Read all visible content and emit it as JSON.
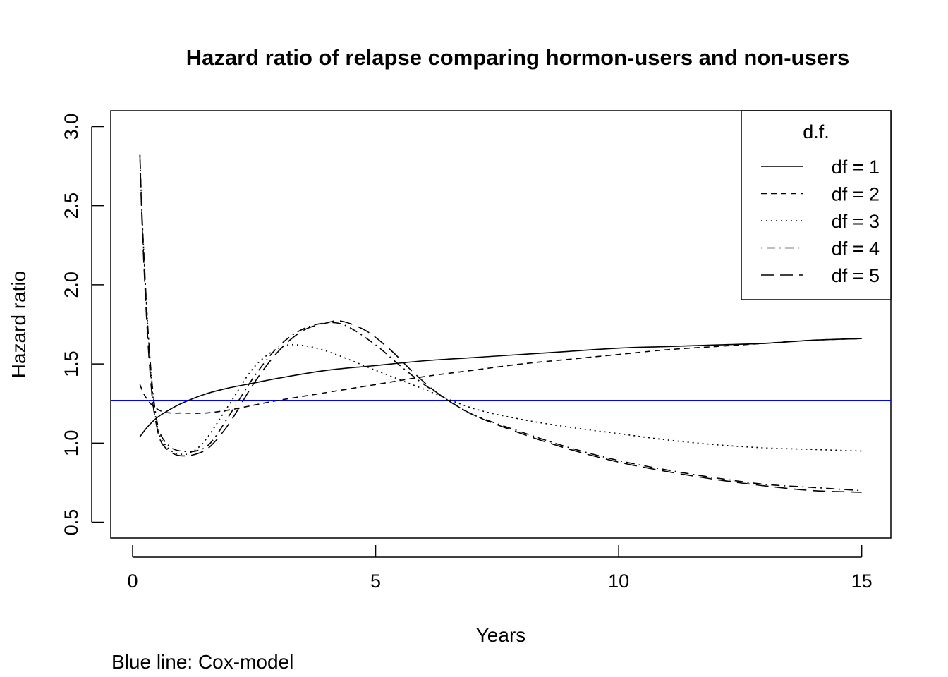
{
  "chart_data": {
    "type": "line",
    "title": "Hazard ratio of relapse comparing hormon-users and non-users",
    "xlabel": "Years",
    "ylabel": "Hazard ratio",
    "subtitle": "Blue line: Cox-model",
    "xlim": [
      -0.45,
      15.6
    ],
    "ylim": [
      0.4,
      3.1
    ],
    "xticks": [
      0,
      5,
      10,
      15
    ],
    "yticks": [
      0.5,
      1.0,
      1.5,
      2.0,
      2.5,
      3.0
    ],
    "xtick_labels": [
      "0",
      "5",
      "10",
      "15"
    ],
    "ytick_labels": [
      "0.5",
      "1.0",
      "1.5",
      "2.0",
      "2.5",
      "3.0"
    ],
    "grid": false,
    "legend": {
      "title": "d.f.",
      "position": "top-right",
      "labels": [
        "df = 1",
        "df = 2",
        "df = 3",
        "df = 4",
        "df = 5"
      ]
    },
    "reference_line": {
      "y": 1.27,
      "color": "#0000ff",
      "label": "Blue line: Cox-model"
    },
    "series": [
      {
        "name": "df = 1",
        "dash": "solid",
        "x": [
          0.15,
          0.3,
          0.5,
          0.7,
          1.0,
          1.5,
          2.0,
          2.5,
          3.0,
          4.0,
          5.0,
          6.0,
          7.0,
          8.0,
          9.0,
          10.0,
          11.0,
          12.0,
          13.0,
          14.0,
          15.0
        ],
        "y": [
          1.04,
          1.1,
          1.16,
          1.2,
          1.25,
          1.31,
          1.35,
          1.38,
          1.41,
          1.46,
          1.49,
          1.52,
          1.54,
          1.56,
          1.58,
          1.6,
          1.61,
          1.62,
          1.63,
          1.65,
          1.66
        ]
      },
      {
        "name": "df = 2",
        "dash": "short-dash",
        "x": [
          0.15,
          0.25,
          0.4,
          0.6,
          0.8,
          1.0,
          1.5,
          2.0,
          2.5,
          3.0,
          4.0,
          5.0,
          6.0,
          7.0,
          8.0,
          9.0,
          10.0,
          11.0,
          12.0,
          13.0,
          14.0,
          15.0
        ],
        "y": [
          1.37,
          1.3,
          1.24,
          1.2,
          1.19,
          1.19,
          1.19,
          1.21,
          1.24,
          1.27,
          1.32,
          1.37,
          1.42,
          1.46,
          1.5,
          1.53,
          1.56,
          1.59,
          1.61,
          1.63,
          1.65,
          1.66
        ]
      },
      {
        "name": "df = 3",
        "dash": "dotted",
        "x": [
          0.15,
          0.2,
          0.3,
          0.4,
          0.5,
          0.6,
          0.8,
          1.0,
          1.2,
          1.5,
          2.0,
          2.5,
          3.0,
          3.4,
          4.0,
          5.0,
          6.0,
          7.0,
          8.0,
          9.0,
          10.0,
          11.0,
          12.0,
          13.0,
          14.0,
          15.0
        ],
        "y": [
          2.82,
          2.4,
          1.8,
          1.35,
          1.12,
          1.02,
          0.95,
          0.93,
          0.94,
          1.02,
          1.25,
          1.48,
          1.6,
          1.62,
          1.58,
          1.46,
          1.34,
          1.22,
          1.15,
          1.1,
          1.06,
          1.02,
          0.99,
          0.97,
          0.96,
          0.95
        ]
      },
      {
        "name": "df = 4",
        "dash": "dot-dash",
        "x": [
          0.15,
          0.2,
          0.3,
          0.4,
          0.5,
          0.6,
          0.8,
          1.0,
          1.3,
          1.6,
          2.0,
          2.5,
          3.0,
          3.5,
          4.0,
          4.4,
          5.0,
          5.5,
          6.0,
          6.5,
          7.0,
          8.0,
          9.0,
          10.0,
          11.0,
          12.0,
          13.0,
          14.0,
          15.0
        ],
        "y": [
          2.82,
          2.4,
          1.8,
          1.38,
          1.14,
          1.04,
          0.97,
          0.95,
          0.95,
          1.0,
          1.18,
          1.42,
          1.61,
          1.72,
          1.76,
          1.74,
          1.62,
          1.49,
          1.37,
          1.27,
          1.18,
          1.07,
          0.97,
          0.89,
          0.83,
          0.78,
          0.74,
          0.72,
          0.7
        ]
      },
      {
        "name": "df = 5",
        "dash": "long-dash",
        "x": [
          0.15,
          0.2,
          0.3,
          0.4,
          0.5,
          0.6,
          0.8,
          1.0,
          1.3,
          1.6,
          2.0,
          2.5,
          3.0,
          3.5,
          4.0,
          4.3,
          4.8,
          5.3,
          5.8,
          6.3,
          7.0,
          8.0,
          9.0,
          10.0,
          11.0,
          12.0,
          13.0,
          14.0,
          15.0
        ],
        "y": [
          2.82,
          2.35,
          1.72,
          1.3,
          1.1,
          1.0,
          0.94,
          0.92,
          0.93,
          0.98,
          1.13,
          1.38,
          1.58,
          1.71,
          1.76,
          1.77,
          1.71,
          1.59,
          1.44,
          1.31,
          1.18,
          1.06,
          0.96,
          0.88,
          0.82,
          0.77,
          0.73,
          0.7,
          0.69
        ]
      }
    ]
  }
}
